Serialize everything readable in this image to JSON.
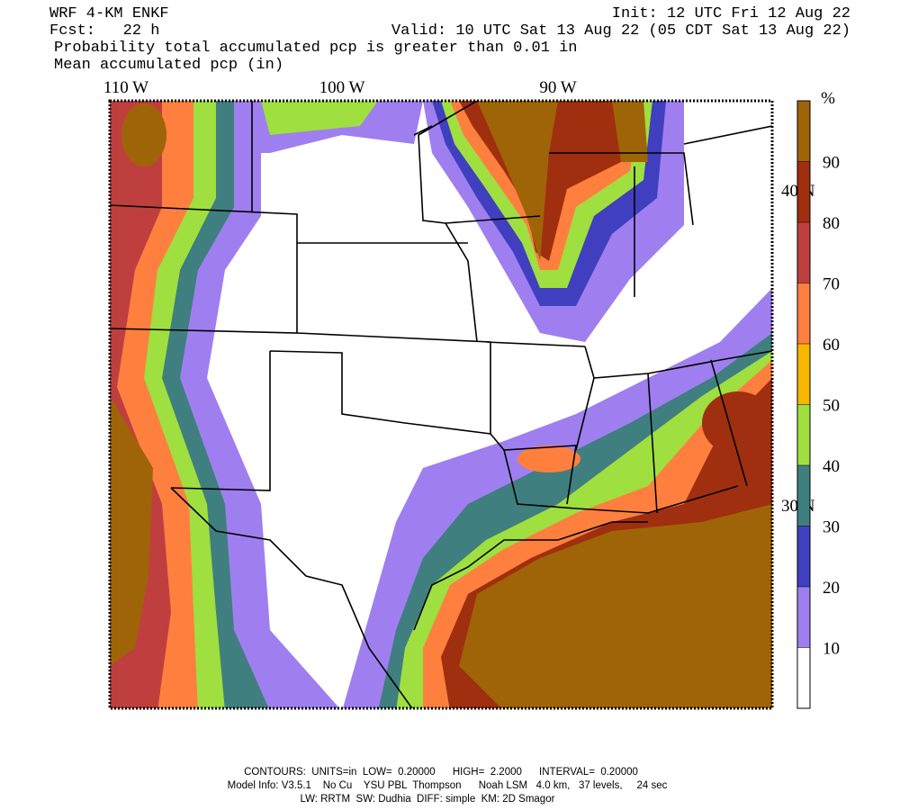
{
  "header": {
    "model": "WRF 4-KM ENKF",
    "init": "Init: 12 UTC Fri 12 Aug 22",
    "forecast": "Fcst:   22 h",
    "valid": "Valid: 10 UTC Sat 13 Aug 22 (05 CDT Sat 13 Aug 22)",
    "field1": "Probability total accumulated pcp is greater than 0.01 in",
    "field2": "Mean accumulated pcp (in)"
  },
  "map": {
    "longitude_labels": [
      "110 W",
      "100 W",
      "90 W"
    ],
    "latitude_labels": [
      "40 N",
      "30 N"
    ]
  },
  "colorbar": {
    "unit": "%",
    "ylim": [
      0,
      100
    ],
    "ticks": [
      10,
      20,
      30,
      40,
      50,
      60,
      70,
      80,
      90
    ],
    "colors": [
      "#ffffff",
      "#9f7fef",
      "#3f3fbf",
      "#3f7f7f",
      "#9fdf3f",
      "#f7b700",
      "#ff7f3f",
      "#bf3f3f",
      "#9f2f0f",
      "#9f6407"
    ]
  },
  "footer": [
    "CONTOURS:  UNITS=in  LOW=  0.20000      HIGH=  2.2000      INTERVAL=  0.20000",
    "Model Info: V3.5.1    No Cu    YSU PBL  Thompson      Noah LSM   4.0 km,   37 levels,     24 sec",
    "LW: RRTM  SW: Dudhia  DIFF: simple  KM: 2D Smagor"
  ]
}
